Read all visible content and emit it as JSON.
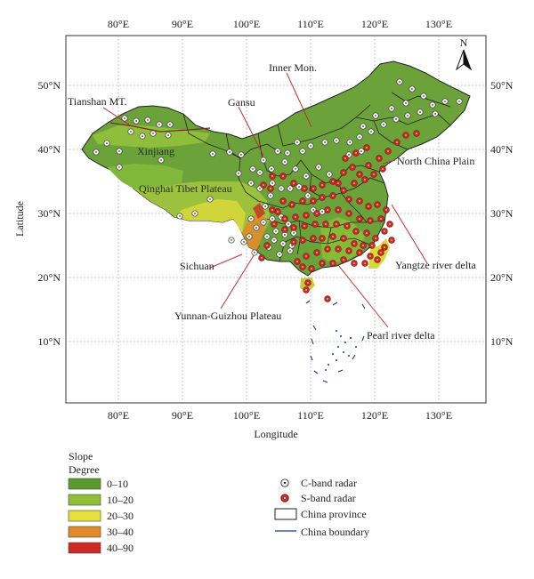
{
  "map": {
    "lon_ticks": [
      "80°E",
      "90°E",
      "100°E",
      "110°E",
      "120°E",
      "130°E"
    ],
    "lat_ticks": [
      "50°N",
      "40°N",
      "30°N",
      "20°N",
      "10°N"
    ],
    "xlabel": "Longitude",
    "ylabel": "Latitude",
    "north_arrow": "N",
    "regions": {
      "tianshan": "Tianshan MT.",
      "gansu": "Gansu",
      "inner_mon": "Inner Mon.",
      "xinjiang": "Xinjiang",
      "north_china_plain": "North China Plain",
      "qinghai_tibet": "Qinghai Tibet Plateau",
      "yangtze": "Yangtze river delta",
      "sichuan": "Sichuan",
      "yunnan_guizhou": "Yunnan-Guizhou Plateau",
      "pearl": "Pearl river delta"
    },
    "colors": {
      "green_dark": "#5a9a2f",
      "green_light": "#8fbf3a",
      "yellow": "#e6e03a",
      "orange": "#e08a2a",
      "red": "#cc2a22",
      "boundary": "#1a3a8a"
    }
  },
  "slope_legend": {
    "title": "Slope",
    "subtitle": "Degree",
    "items": [
      {
        "label": "0–10",
        "color": "#5a9a2f"
      },
      {
        "label": "10–20",
        "color": "#8fbf3a"
      },
      {
        "label": "20–30",
        "color": "#e6e03a"
      },
      {
        "label": "30–40",
        "color": "#e08a2a"
      },
      {
        "label": "40–90",
        "color": "#cc2a22"
      }
    ]
  },
  "symbol_legend": {
    "c_band": "C-band radar",
    "s_band": "S-band radar",
    "province": "China province",
    "boundary": "China boundary"
  }
}
